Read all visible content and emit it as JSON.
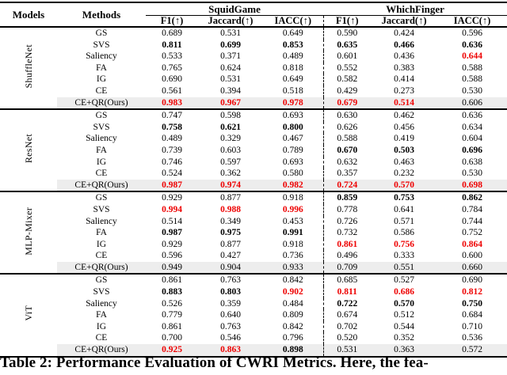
{
  "colors": {
    "accent_red": "#ee0000",
    "highlight_bg": "#ededed"
  },
  "caption": "Table 2: Performance Evaluation of CWRI Metrics. Here, the fea-",
  "table": {
    "header": {
      "models": "Models",
      "methods": "Methods",
      "group1": "SquidGame",
      "group2": "WhichFinger",
      "metrics": [
        "F1(↑)",
        "Jaccard(↑)",
        "IACC(↑)",
        "F1(↑)",
        "Jaccard(↑)",
        "IACC(↑)"
      ]
    },
    "model_groups": [
      {
        "model": "ShuffleNet",
        "rows": [
          {
            "method": "GS",
            "highlight": false,
            "values": [
              "0.689",
              "0.531",
              "0.649",
              "0.590",
              "0.424",
              "0.596"
            ],
            "styles": [
              "n",
              "n",
              "n",
              "n",
              "n",
              "n"
            ]
          },
          {
            "method": "SVS",
            "highlight": false,
            "values": [
              "0.811",
              "0.699",
              "0.853",
              "0.635",
              "0.466",
              "0.636"
            ],
            "styles": [
              "b",
              "b",
              "b",
              "b",
              "b",
              "b"
            ]
          },
          {
            "method": "Saliency",
            "highlight": false,
            "values": [
              "0.533",
              "0.371",
              "0.489",
              "0.601",
              "0.436",
              "0.644"
            ],
            "styles": [
              "n",
              "n",
              "n",
              "n",
              "n",
              "r"
            ]
          },
          {
            "method": "FA",
            "highlight": false,
            "values": [
              "0.765",
              "0.624",
              "0.818",
              "0.552",
              "0.383",
              "0.588"
            ],
            "styles": [
              "n",
              "n",
              "n",
              "n",
              "n",
              "n"
            ]
          },
          {
            "method": "IG",
            "highlight": false,
            "values": [
              "0.690",
              "0.531",
              "0.649",
              "0.582",
              "0.414",
              "0.588"
            ],
            "styles": [
              "n",
              "n",
              "n",
              "n",
              "n",
              "n"
            ]
          },
          {
            "method": "CE",
            "highlight": false,
            "values": [
              "0.561",
              "0.394",
              "0.518",
              "0.429",
              "0.273",
              "0.530"
            ],
            "styles": [
              "n",
              "n",
              "n",
              "n",
              "n",
              "n"
            ]
          },
          {
            "method": "CE+QR(Ours)",
            "highlight": true,
            "values": [
              "0.983",
              "0.967",
              "0.978",
              "0.679",
              "0.514",
              "0.606"
            ],
            "styles": [
              "r",
              "r",
              "r",
              "r",
              "r",
              "n"
            ]
          }
        ]
      },
      {
        "model": "ResNet",
        "rows": [
          {
            "method": "GS",
            "highlight": false,
            "values": [
              "0.747",
              "0.598",
              "0.693",
              "0.630",
              "0.462",
              "0.636"
            ],
            "styles": [
              "n",
              "n",
              "n",
              "n",
              "n",
              "n"
            ]
          },
          {
            "method": "SVS",
            "highlight": false,
            "values": [
              "0.758",
              "0.621",
              "0.800",
              "0.626",
              "0.456",
              "0.634"
            ],
            "styles": [
              "b",
              "b",
              "b",
              "n",
              "n",
              "n"
            ]
          },
          {
            "method": "Saliency",
            "highlight": false,
            "values": [
              "0.489",
              "0.329",
              "0.467",
              "0.588",
              "0.419",
              "0.604"
            ],
            "styles": [
              "n",
              "n",
              "n",
              "n",
              "n",
              "n"
            ]
          },
          {
            "method": "FA",
            "highlight": false,
            "values": [
              "0.739",
              "0.603",
              "0.789",
              "0.670",
              "0.503",
              "0.696"
            ],
            "styles": [
              "n",
              "n",
              "n",
              "b",
              "b",
              "b"
            ]
          },
          {
            "method": "IG",
            "highlight": false,
            "values": [
              "0.746",
              "0.597",
              "0.693",
              "0.632",
              "0.463",
              "0.638"
            ],
            "styles": [
              "n",
              "n",
              "n",
              "n",
              "n",
              "n"
            ]
          },
          {
            "method": "CE",
            "highlight": false,
            "values": [
              "0.524",
              "0.362",
              "0.580",
              "0.357",
              "0.232",
              "0.530"
            ],
            "styles": [
              "n",
              "n",
              "n",
              "n",
              "n",
              "n"
            ]
          },
          {
            "method": "CE+QR(Ours)",
            "highlight": true,
            "values": [
              "0.987",
              "0.974",
              "0.982",
              "0.724",
              "0.570",
              "0.698"
            ],
            "styles": [
              "r",
              "r",
              "r",
              "r",
              "r",
              "r"
            ]
          }
        ]
      },
      {
        "model": "MLP-Mixer",
        "rows": [
          {
            "method": "GS",
            "highlight": false,
            "values": [
              "0.929",
              "0.877",
              "0.918",
              "0.859",
              "0.753",
              "0.862"
            ],
            "styles": [
              "n",
              "n",
              "n",
              "b",
              "b",
              "b"
            ]
          },
          {
            "method": "SVS",
            "highlight": false,
            "values": [
              "0.994",
              "0.988",
              "0.996",
              "0.778",
              "0.641",
              "0.784"
            ],
            "styles": [
              "r",
              "r",
              "r",
              "n",
              "n",
              "n"
            ]
          },
          {
            "method": "Saliency",
            "highlight": false,
            "values": [
              "0.514",
              "0.349",
              "0.453",
              "0.726",
              "0.571",
              "0.744"
            ],
            "styles": [
              "n",
              "n",
              "n",
              "n",
              "n",
              "n"
            ]
          },
          {
            "method": "FA",
            "highlight": false,
            "values": [
              "0.987",
              "0.975",
              "0.991",
              "0.732",
              "0.586",
              "0.752"
            ],
            "styles": [
              "b",
              "b",
              "b",
              "n",
              "n",
              "n"
            ]
          },
          {
            "method": "IG",
            "highlight": false,
            "values": [
              "0.929",
              "0.877",
              "0.918",
              "0.861",
              "0.756",
              "0.864"
            ],
            "styles": [
              "n",
              "n",
              "n",
              "r",
              "r",
              "r"
            ]
          },
          {
            "method": "CE",
            "highlight": false,
            "values": [
              "0.596",
              "0.427",
              "0.736",
              "0.496",
              "0.333",
              "0.600"
            ],
            "styles": [
              "n",
              "n",
              "n",
              "n",
              "n",
              "n"
            ]
          },
          {
            "method": "CE+QR(Ours)",
            "highlight": true,
            "values": [
              "0.949",
              "0.904",
              "0.933",
              "0.709",
              "0.551",
              "0.660"
            ],
            "styles": [
              "n",
              "n",
              "n",
              "n",
              "n",
              "n"
            ]
          }
        ]
      },
      {
        "model": "ViT",
        "rows": [
          {
            "method": "GS",
            "highlight": false,
            "values": [
              "0.861",
              "0.763",
              "0.842",
              "0.685",
              "0.527",
              "0.690"
            ],
            "styles": [
              "n",
              "n",
              "n",
              "n",
              "n",
              "n"
            ]
          },
          {
            "method": "SVS",
            "highlight": false,
            "values": [
              "0.883",
              "0.803",
              "0.902",
              "0.811",
              "0.686",
              "0.812"
            ],
            "styles": [
              "b",
              "b",
              "r",
              "r",
              "r",
              "r"
            ]
          },
          {
            "method": "Saliency",
            "highlight": false,
            "values": [
              "0.526",
              "0.359",
              "0.484",
              "0.722",
              "0.570",
              "0.750"
            ],
            "styles": [
              "n",
              "n",
              "n",
              "b",
              "b",
              "b"
            ]
          },
          {
            "method": "FA",
            "highlight": false,
            "values": [
              "0.779",
              "0.640",
              "0.809",
              "0.674",
              "0.512",
              "0.684"
            ],
            "styles": [
              "n",
              "n",
              "n",
              "n",
              "n",
              "n"
            ]
          },
          {
            "method": "IG",
            "highlight": false,
            "values": [
              "0.861",
              "0.763",
              "0.842",
              "0.702",
              "0.544",
              "0.710"
            ],
            "styles": [
              "n",
              "n",
              "n",
              "n",
              "n",
              "n"
            ]
          },
          {
            "method": "CE",
            "highlight": false,
            "values": [
              "0.700",
              "0.546",
              "0.796",
              "0.520",
              "0.352",
              "0.536"
            ],
            "styles": [
              "n",
              "n",
              "n",
              "n",
              "n",
              "n"
            ]
          },
          {
            "method": "CE+QR(Ours)",
            "highlight": true,
            "values": [
              "0.925",
              "0.863",
              "0.898",
              "0.531",
              "0.363",
              "0.572"
            ],
            "styles": [
              "r",
              "r",
              "b",
              "n",
              "n",
              "n"
            ]
          }
        ]
      }
    ]
  }
}
